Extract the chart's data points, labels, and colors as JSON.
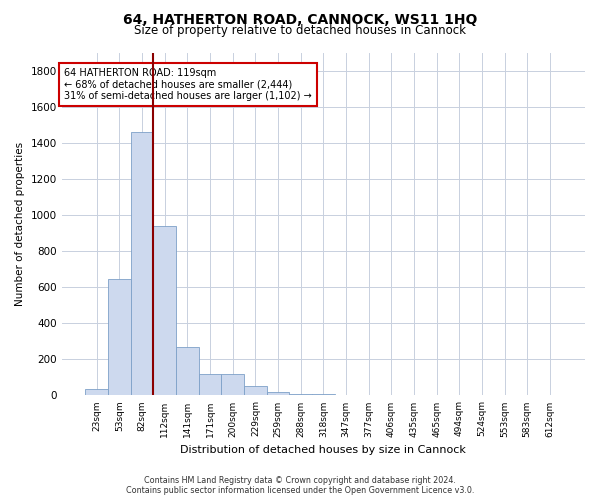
{
  "title": "64, HATHERTON ROAD, CANNOCK, WS11 1HQ",
  "subtitle": "Size of property relative to detached houses in Cannock",
  "xlabel": "Distribution of detached houses by size in Cannock",
  "ylabel": "Number of detached properties",
  "categories": [
    "23sqm",
    "53sqm",
    "82sqm",
    "112sqm",
    "141sqm",
    "171sqm",
    "200sqm",
    "229sqm",
    "259sqm",
    "288sqm",
    "318sqm",
    "347sqm",
    "377sqm",
    "406sqm",
    "435sqm",
    "465sqm",
    "494sqm",
    "524sqm",
    "553sqm",
    "583sqm",
    "612sqm"
  ],
  "values": [
    38,
    645,
    1460,
    940,
    270,
    120,
    120,
    55,
    18,
    10,
    10,
    0,
    0,
    0,
    0,
    0,
    0,
    0,
    0,
    0,
    0
  ],
  "bar_color": "#cdd9ee",
  "bar_edge_color": "#7da0c8",
  "red_line_index": 2.5,
  "annotation_line1": "64 HATHERTON ROAD: 119sqm",
  "annotation_line2": "← 68% of detached houses are smaller (2,444)",
  "annotation_line3": "31% of semi-detached houses are larger (1,102) →",
  "ylim": [
    0,
    1900
  ],
  "yticks": [
    0,
    200,
    400,
    600,
    800,
    1000,
    1200,
    1400,
    1600,
    1800
  ],
  "footer_line1": "Contains HM Land Registry data © Crown copyright and database right 2024.",
  "footer_line2": "Contains public sector information licensed under the Open Government Licence v3.0.",
  "background_color": "#ffffff",
  "grid_color": "#c8d0df"
}
